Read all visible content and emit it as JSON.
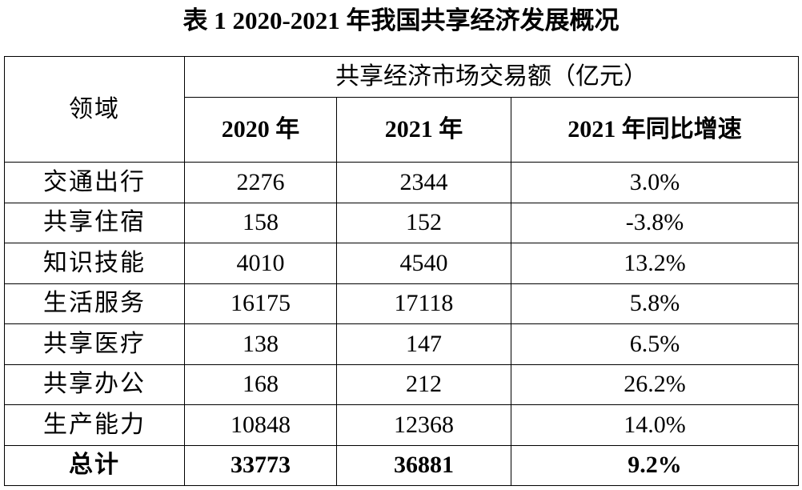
{
  "title": "表 1 2020-2021 年我国共享经济发展概况",
  "table": {
    "corner": "领域",
    "group_header": "共享经济市场交易额（亿元）",
    "columns": [
      "2020 年",
      "2021 年",
      "2021 年同比增速"
    ],
    "rows": [
      [
        "交通出行",
        "2276",
        "2344",
        "3.0%"
      ],
      [
        "共享住宿",
        "158",
        "152",
        "-3.8%"
      ],
      [
        "知识技能",
        "4010",
        "4540",
        "13.2%"
      ],
      [
        "生活服务",
        "16175",
        "17118",
        "5.8%"
      ],
      [
        "共享医疗",
        "138",
        "147",
        "6.5%"
      ],
      [
        "共享办公",
        "168",
        "212",
        "26.2%"
      ],
      [
        "生产能力",
        "10848",
        "12368",
        "14.0%"
      ]
    ],
    "total": [
      "总计",
      "33773",
      "36881",
      "9.2%"
    ]
  }
}
